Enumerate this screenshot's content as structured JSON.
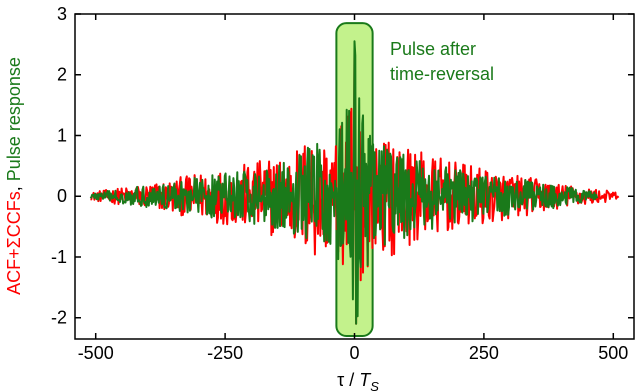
{
  "chart_data": {
    "type": "line",
    "title": "",
    "xlabel_tau": "τ",
    "xlabel_sep": " / ",
    "xlabel_T": "T",
    "xlabel_sub": "S",
    "ylabel_part1": "ACF+ΣCCFs",
    "ylabel_sep": ", ",
    "ylabel_part2": "Pulse response",
    "xlim": [
      -540,
      540
    ],
    "ylim": [
      -2.35,
      3
    ],
    "xticks": [
      -500,
      -250,
      0,
      250,
      500
    ],
    "yticks": [
      -2,
      -1,
      0,
      1,
      2,
      3
    ],
    "grid": false,
    "annotation_line1": "Pulse after",
    "annotation_line2": "time-reversal",
    "highlight_x_range": [
      -35,
      35
    ],
    "highlight_y_range": [
      -2.3,
      2.85
    ],
    "series": [
      {
        "color": "#ff0000",
        "x_range": [
          -510,
          510
        ],
        "envelope": [
          [
            -520,
            0.02
          ],
          [
            -500,
            0.08
          ],
          [
            -400,
            0.2
          ],
          [
            -300,
            0.38
          ],
          [
            -200,
            0.55
          ],
          [
            -120,
            0.75
          ],
          [
            -80,
            1.1
          ],
          [
            -40,
            0.85
          ],
          [
            -10,
            1.5
          ],
          [
            0,
            2.5
          ],
          [
            10,
            1.5
          ],
          [
            40,
            0.85
          ],
          [
            80,
            1.0
          ],
          [
            120,
            0.75
          ],
          [
            200,
            0.55
          ],
          [
            300,
            0.38
          ],
          [
            400,
            0.2
          ],
          [
            500,
            0.08
          ],
          [
            520,
            0.02
          ]
        ]
      },
      {
        "color": "#1a7a1a",
        "x_range": [
          -510,
          470
        ],
        "envelope": [
          [
            -520,
            0.02
          ],
          [
            -500,
            0.06
          ],
          [
            -400,
            0.18
          ],
          [
            -300,
            0.32
          ],
          [
            -200,
            0.45
          ],
          [
            -120,
            0.6
          ],
          [
            -80,
            1.0
          ],
          [
            -40,
            0.9
          ],
          [
            -10,
            1.6
          ],
          [
            0,
            2.55
          ],
          [
            10,
            1.6
          ],
          [
            40,
            0.9
          ],
          [
            80,
            0.8
          ],
          [
            120,
            0.6
          ],
          [
            200,
            0.45
          ],
          [
            300,
            0.32
          ],
          [
            400,
            0.18
          ],
          [
            470,
            0.06
          ],
          [
            480,
            0.0
          ]
        ]
      }
    ]
  }
}
